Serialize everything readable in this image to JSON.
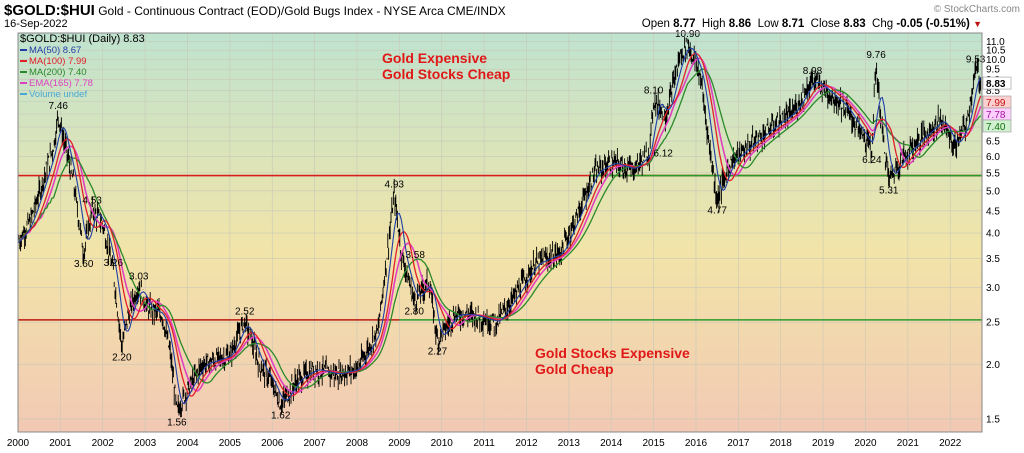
{
  "header": {
    "symbol": "$GOLD:$HUI",
    "description": "Gold - Continuous Contract (EOD)/Gold Bugs Index - NYSE Arca",
    "exchange": "CME/INDX",
    "date": "16-Sep-2022",
    "credit": "© StockCharts.com",
    "ohlc": {
      "open_label": "Open",
      "open": "8.77",
      "high_label": "High",
      "high": "8.86",
      "low_label": "Low",
      "low": "8.71",
      "close_label": "Close",
      "close": "8.83",
      "chg_label": "Chg",
      "chg": "-0.05 (-0.51%)"
    }
  },
  "legend": [
    {
      "label": "$GOLD:$HUI (Daily) 8.83",
      "color": "#000000"
    },
    {
      "label": "MA(50) 8.67",
      "color": "#1f3fa8"
    },
    {
      "label": "MA(100) 7.99",
      "color": "#e0202a"
    },
    {
      "label": "MA(200) 7.40",
      "color": "#2a8a2a"
    },
    {
      "label": "EMA(165) 7.78",
      "color": "#e040c0"
    },
    {
      "label": "Volume undef",
      "color": "#4aa8d8"
    }
  ],
  "annotations": {
    "upper": [
      "Gold Expensive",
      "Gold Stocks Cheap"
    ],
    "lower": [
      "Gold Stocks Expensive",
      "Gold Cheap"
    ]
  },
  "chart_data": {
    "type": "line",
    "scale": "log",
    "xlim": [
      2000,
      2022.75
    ],
    "ylim": [
      1.4,
      11.5
    ],
    "x_ticks": [
      2000,
      2001,
      2002,
      2003,
      2004,
      2005,
      2006,
      2007,
      2008,
      2009,
      2010,
      2011,
      2012,
      2013,
      2014,
      2015,
      2016,
      2017,
      2018,
      2019,
      2020,
      2021,
      2022
    ],
    "y_ticks": [
      1.5,
      2.0,
      2.5,
      3.0,
      3.5,
      4.0,
      4.5,
      5.0,
      5.5,
      6.0,
      6.5,
      7.0,
      7.5,
      8.0,
      8.5,
      9.0,
      9.5,
      10.0,
      10.5,
      11.0
    ],
    "y_tick_labels": [
      "1.5",
      "2.0",
      "2.5",
      "3.0",
      "3.5",
      "4.0",
      "4.5",
      "5.0",
      "5.5",
      "6.0",
      "6.5",
      "7.0",
      "7.5",
      "8.0",
      "8.5",
      "9.0",
      "9.5",
      "10.0",
      "10.5",
      "11.0"
    ],
    "horizontal_lines": [
      {
        "y": 5.42,
        "color": "#d42020"
      },
      {
        "y": 5.42,
        "color": "#2a9a2a",
        "from_x": 2013.5
      },
      {
        "y": 2.53,
        "color": "#2a9a2a"
      },
      {
        "y": 2.53,
        "color": "#d42020",
        "from_x": 2000,
        "to_x": 2009
      }
    ],
    "price_points": [
      [
        2000.0,
        3.8
      ],
      [
        2000.3,
        4.3
      ],
      [
        2000.6,
        5.3
      ],
      [
        2000.85,
        6.4
      ],
      [
        2000.95,
        7.46
      ],
      [
        2001.1,
        6.4
      ],
      [
        2001.3,
        5.3
      ],
      [
        2001.55,
        3.6
      ],
      [
        2001.75,
        4.53
      ],
      [
        2002.0,
        4.2
      ],
      [
        2002.25,
        3.26
      ],
      [
        2002.45,
        2.2
      ],
      [
        2002.6,
        2.6
      ],
      [
        2002.85,
        3.03
      ],
      [
        2003.05,
        2.7
      ],
      [
        2003.4,
        2.6
      ],
      [
        2003.6,
        2.1
      ],
      [
        2003.75,
        1.56
      ],
      [
        2004.0,
        1.75
      ],
      [
        2004.35,
        2.0
      ],
      [
        2004.7,
        2.05
      ],
      [
        2005.0,
        2.1
      ],
      [
        2005.35,
        2.52
      ],
      [
        2005.7,
        2.0
      ],
      [
        2005.95,
        1.85
      ],
      [
        2006.2,
        1.62
      ],
      [
        2006.6,
        1.85
      ],
      [
        2007.0,
        1.95
      ],
      [
        2007.5,
        1.9
      ],
      [
        2008.0,
        1.95
      ],
      [
        2008.5,
        2.4
      ],
      [
        2008.88,
        4.93
      ],
      [
        2009.05,
        3.58
      ],
      [
        2009.35,
        2.8
      ],
      [
        2009.7,
        3.1
      ],
      [
        2009.9,
        2.27
      ],
      [
        2010.3,
        2.6
      ],
      [
        2010.7,
        2.6
      ],
      [
        2011.0,
        2.55
      ],
      [
        2011.3,
        2.5
      ],
      [
        2011.7,
        2.85
      ],
      [
        2012.2,
        3.4
      ],
      [
        2012.8,
        3.6
      ],
      [
        2013.2,
        4.4
      ],
      [
        2013.6,
        5.5
      ],
      [
        2014.0,
        5.8
      ],
      [
        2014.5,
        5.6
      ],
      [
        2014.9,
        6.12
      ],
      [
        2015.0,
        8.1
      ],
      [
        2015.3,
        7.5
      ],
      [
        2015.6,
        10.0
      ],
      [
        2015.8,
        10.9
      ],
      [
        2016.1,
        9.2
      ],
      [
        2016.35,
        6.0
      ],
      [
        2016.5,
        4.77
      ],
      [
        2016.8,
        5.8
      ],
      [
        2017.3,
        6.4
      ],
      [
        2017.8,
        7.0
      ],
      [
        2018.3,
        7.6
      ],
      [
        2018.75,
        8.98
      ],
      [
        2019.0,
        8.6
      ],
      [
        2019.5,
        7.8
      ],
      [
        2019.9,
        6.8
      ],
      [
        2020.15,
        6.24
      ],
      [
        2020.25,
        9.76
      ],
      [
        2020.4,
        6.8
      ],
      [
        2020.55,
        5.31
      ],
      [
        2020.9,
        6.0
      ],
      [
        2021.3,
        6.6
      ],
      [
        2021.8,
        7.3
      ],
      [
        2022.1,
        6.3
      ],
      [
        2022.4,
        7.2
      ],
      [
        2022.6,
        9.53
      ],
      [
        2022.75,
        8.83
      ]
    ],
    "peak_labels": [
      {
        "x": 2000.95,
        "y": 7.46,
        "text": "7.46",
        "pos": "above"
      },
      {
        "x": 2001.55,
        "y": 3.6,
        "text": "3.60",
        "pos": "below"
      },
      {
        "x": 2001.75,
        "y": 4.53,
        "text": "4.53",
        "pos": "above"
      },
      {
        "x": 2002.25,
        "y": 3.26,
        "text": "3.26",
        "pos": "above"
      },
      {
        "x": 2002.45,
        "y": 2.2,
        "text": "2.20",
        "pos": "below"
      },
      {
        "x": 2002.85,
        "y": 3.03,
        "text": "3.03",
        "pos": "above"
      },
      {
        "x": 2003.75,
        "y": 1.56,
        "text": "1.56",
        "pos": "below"
      },
      {
        "x": 2005.35,
        "y": 2.52,
        "text": "2.52",
        "pos": "above"
      },
      {
        "x": 2006.2,
        "y": 1.62,
        "text": "1.62",
        "pos": "below"
      },
      {
        "x": 2008.88,
        "y": 4.93,
        "text": "4.93",
        "pos": "above"
      },
      {
        "x": 2009.05,
        "y": 3.58,
        "text": "3.58",
        "pos": "right"
      },
      {
        "x": 2009.35,
        "y": 2.8,
        "text": "2.80",
        "pos": "below"
      },
      {
        "x": 2009.9,
        "y": 2.27,
        "text": "2.27",
        "pos": "below"
      },
      {
        "x": 2014.9,
        "y": 6.12,
        "text": "6.12",
        "pos": "right"
      },
      {
        "x": 2015.0,
        "y": 8.1,
        "text": "8.10",
        "pos": "above"
      },
      {
        "x": 2015.8,
        "y": 10.9,
        "text": "10.90",
        "pos": "above"
      },
      {
        "x": 2016.5,
        "y": 4.77,
        "text": "4.77",
        "pos": "below"
      },
      {
        "x": 2018.75,
        "y": 8.98,
        "text": "8.98",
        "pos": "above"
      },
      {
        "x": 2020.15,
        "y": 6.24,
        "text": "6.24",
        "pos": "below"
      },
      {
        "x": 2020.25,
        "y": 9.76,
        "text": "9.76",
        "pos": "above"
      },
      {
        "x": 2020.55,
        "y": 5.31,
        "text": "5.31",
        "pos": "below"
      },
      {
        "x": 2022.6,
        "y": 9.53,
        "text": "9.53",
        "pos": "above"
      }
    ],
    "right_badges": [
      {
        "y": 8.83,
        "text": "8.83",
        "bg": "#ffffff",
        "fg": "#000000",
        "bold": true
      },
      {
        "y": 7.99,
        "text": "7.99",
        "bg": "#ffd0d0",
        "fg": "#c01010"
      },
      {
        "y": 7.78,
        "text": "7.78",
        "bg": "#ffd0ff",
        "fg": "#a010a0"
      },
      {
        "y": 7.4,
        "text": "7.40",
        "bg": "#d0f0d0",
        "fg": "#107010"
      }
    ]
  }
}
